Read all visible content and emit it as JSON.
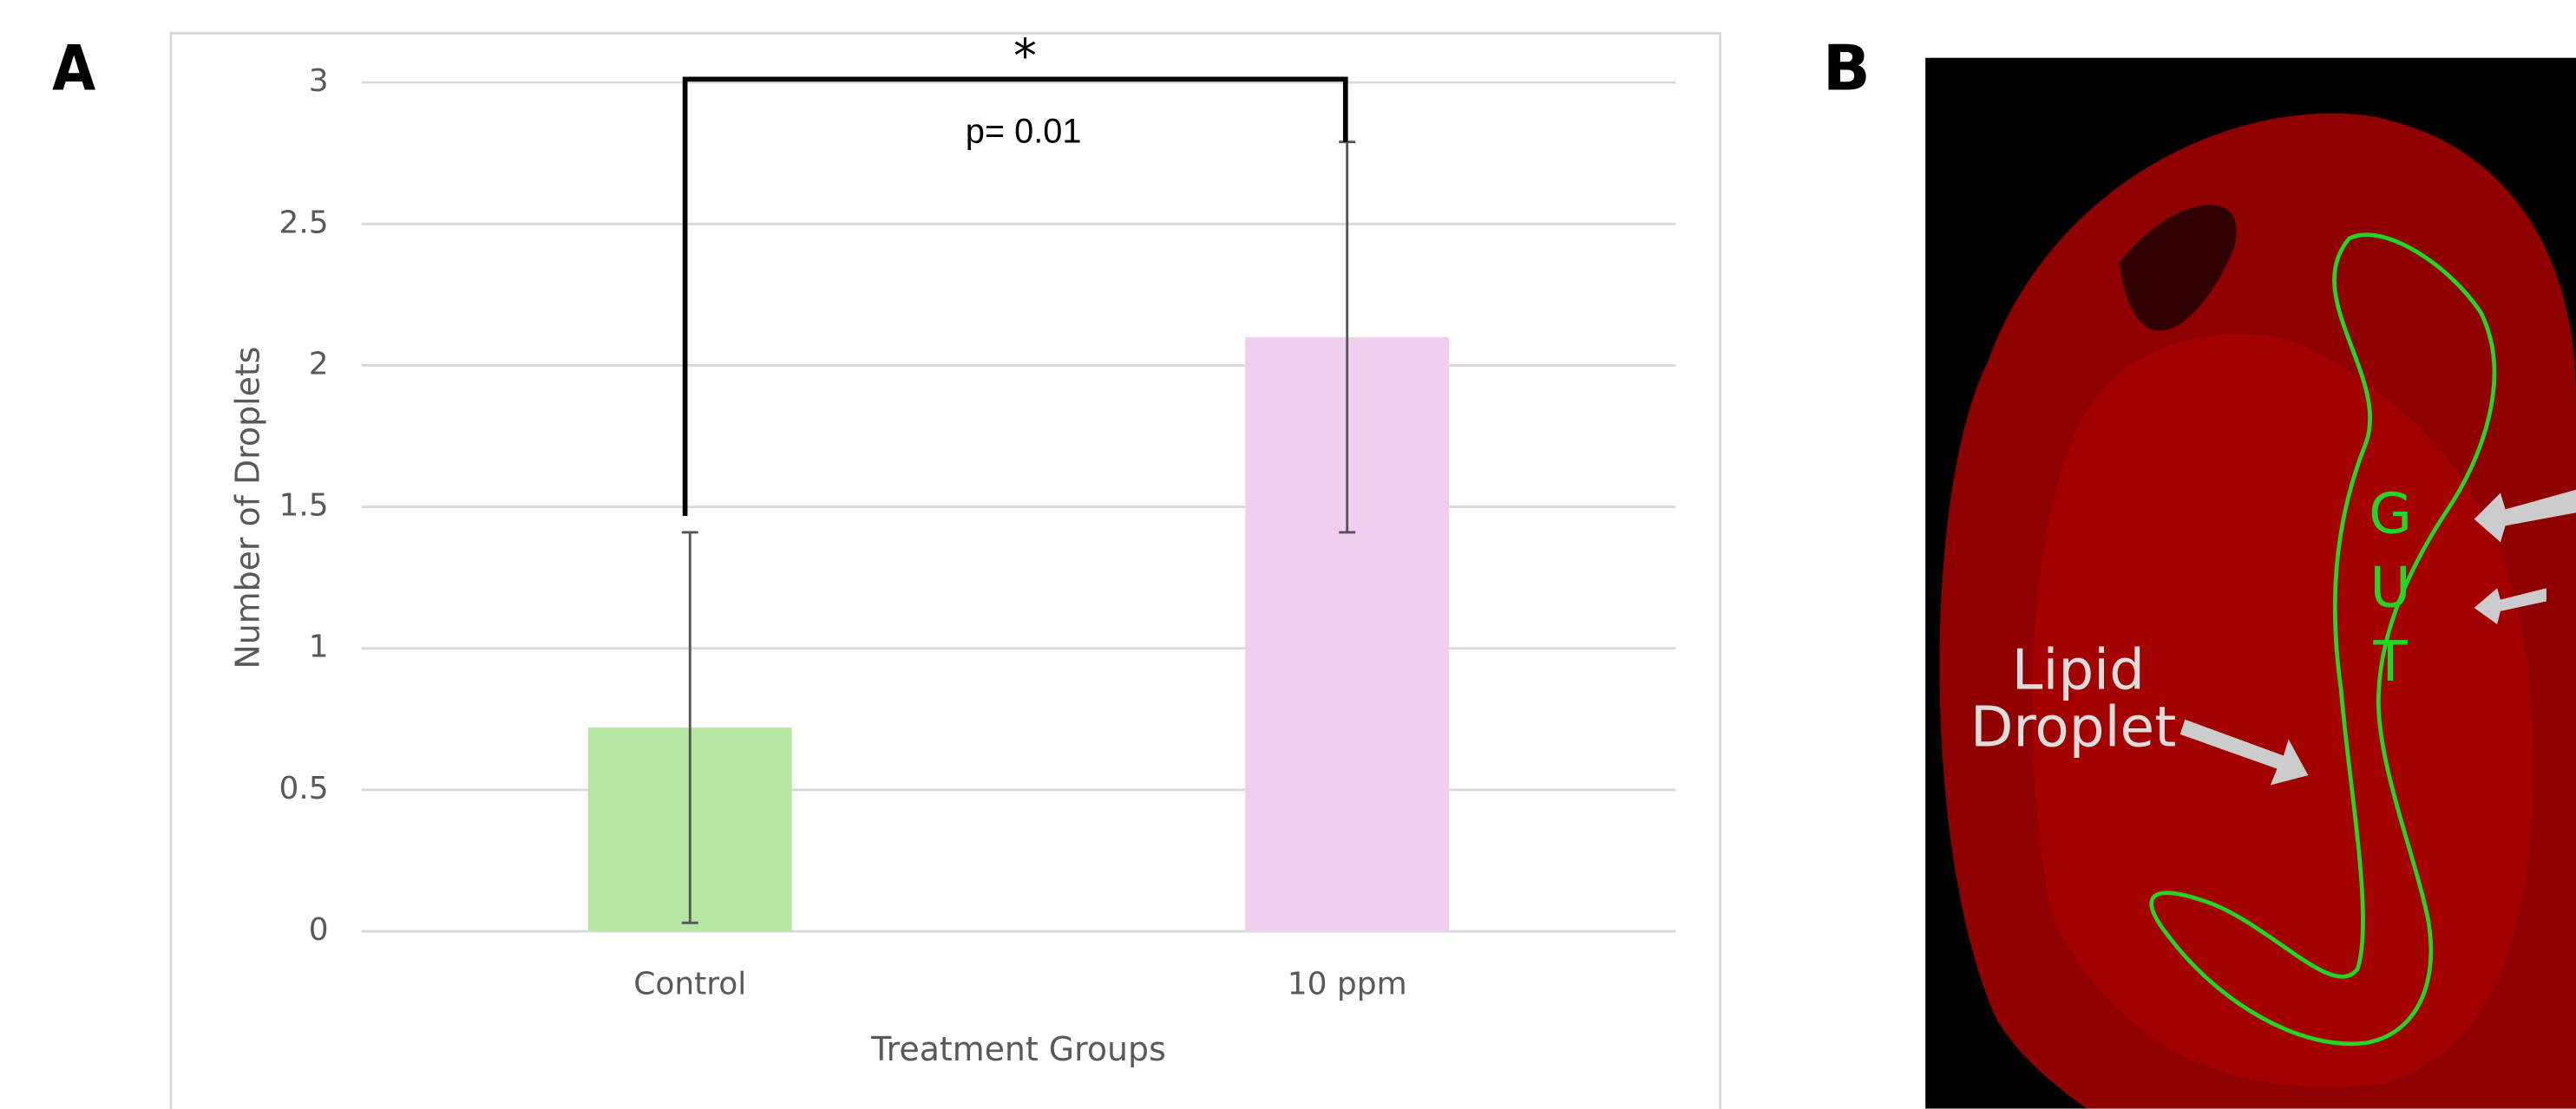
{
  "chart_data": {
    "type": "bar",
    "categories": [
      "Control",
      "10 ppm"
    ],
    "values": [
      0.72,
      2.1
    ],
    "errors": [
      0.69,
      0.69
    ],
    "colors": [
      "#b5e6a3",
      "#f0cfee"
    ],
    "ylim": [
      0,
      3
    ],
    "yticks": [
      0,
      0.5,
      1,
      1.5,
      2,
      2.5,
      3
    ],
    "grid": true,
    "x_label": "Treatment Groups",
    "y_label": "Number of Droplets",
    "significance": "*",
    "p_value": "p= 0.01"
  },
  "panels": {
    "a_label": "A",
    "b_label": "B"
  },
  "image": {
    "gut_letters": [
      "G",
      "U",
      "T"
    ],
    "lipid_label": [
      "Lipid",
      "Droplet"
    ]
  }
}
